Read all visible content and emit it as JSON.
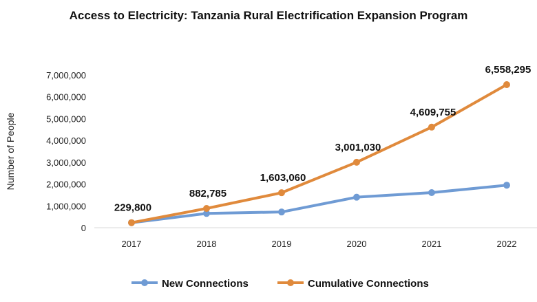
{
  "chart_data": {
    "type": "line",
    "title": "Access to Electricity: Tanzania Rural Electrification Expansion Program",
    "xlabel": "",
    "ylabel": "Number of People",
    "categories": [
      "2017",
      "2018",
      "2019",
      "2020",
      "2021",
      "2022"
    ],
    "ylim": [
      0,
      7000000
    ],
    "yticks": [
      "0",
      "1,000,000",
      "2,000,000",
      "3,000,000",
      "4,000,000",
      "5,000,000",
      "6,000,000",
      "7,000,000"
    ],
    "grid": false,
    "legend": "bottom",
    "series": [
      {
        "name": "New Connections",
        "color": "#6f9bd4",
        "values": [
          229800,
          652985,
          720275,
          1397970,
          1608725,
          1948540
        ],
        "labels": []
      },
      {
        "name": "Cumulative Connections",
        "color": "#e08a3c",
        "values": [
          229800,
          882785,
          1603060,
          3001030,
          4609755,
          6558295
        ],
        "labels": [
          "229,800",
          "882,785",
          "1,603,060",
          "3,001,030",
          "4,609,755",
          "6,558,295"
        ]
      }
    ]
  }
}
